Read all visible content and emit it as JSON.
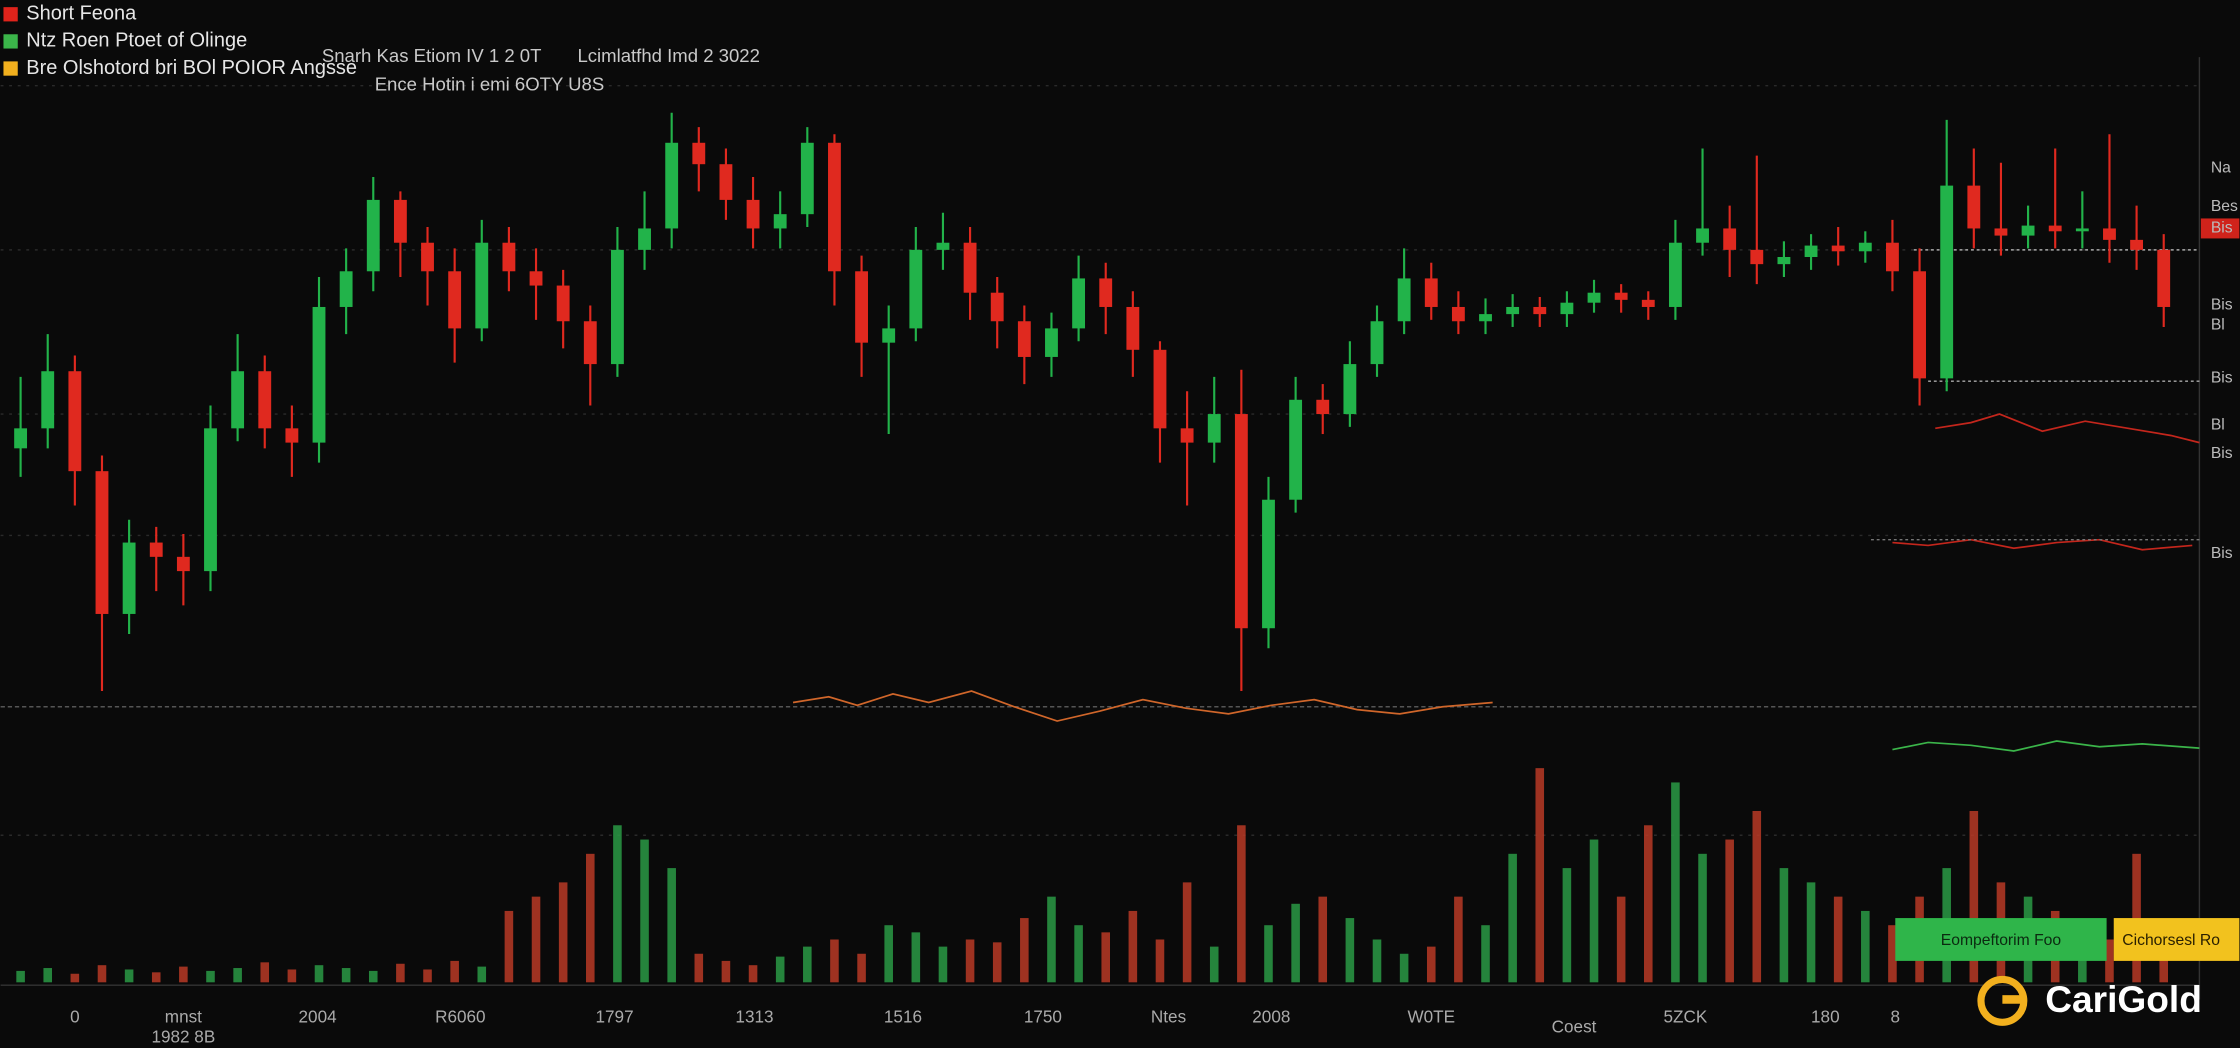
{
  "legend": [
    {
      "label": "Short Feona",
      "color": "#e0231b"
    },
    {
      "label": "Ntz Roen Ptoet of Olinge",
      "color": "#3bb54a"
    },
    {
      "label": "Bre Olshotord bri BOl POIOR Angsse",
      "color": "#f2b01e"
    }
  ],
  "header_notes": [
    "Snarh Kas Etiom IV 1 2 0T",
    "Lcimlatfhd Imd 2 3022",
    "Ence Hotin i emi 6OTY U8S"
  ],
  "candles": {
    "open": [
      420,
      434,
      474,
      404,
      304,
      354,
      344,
      334,
      434,
      474,
      434,
      424,
      519,
      544,
      594,
      564,
      544,
      504,
      564,
      544,
      534,
      509,
      479,
      559,
      574,
      634,
      619,
      594,
      574,
      584,
      634,
      544,
      494,
      504,
      559,
      564,
      529,
      509,
      484,
      504,
      539,
      519,
      489,
      434,
      424,
      444,
      294,
      384,
      454,
      444,
      479,
      509,
      539,
      519,
      509,
      514,
      519,
      514,
      522,
      529,
      524,
      519,
      564,
      574,
      559,
      549,
      554,
      562,
      558,
      564,
      544,
      469,
      604,
      574,
      569,
      576,
      572,
      574,
      566,
      559
    ],
    "close": [
      434,
      474,
      404,
      304,
      354,
      344,
      334,
      434,
      474,
      434,
      424,
      519,
      544,
      594,
      564,
      544,
      504,
      564,
      544,
      534,
      509,
      479,
      559,
      574,
      634,
      619,
      594,
      574,
      584,
      634,
      544,
      494,
      504,
      559,
      564,
      529,
      509,
      484,
      504,
      539,
      519,
      489,
      434,
      424,
      444,
      294,
      384,
      454,
      444,
      479,
      509,
      539,
      519,
      509,
      514,
      519,
      514,
      522,
      529,
      524,
      519,
      564,
      574,
      559,
      549,
      554,
      562,
      558,
      564,
      544,
      469,
      604,
      574,
      569,
      576,
      572,
      574,
      566,
      559,
      519
    ],
    "high": [
      470,
      500,
      485,
      415,
      370,
      365,
      360,
      450,
      500,
      485,
      450,
      540,
      560,
      610,
      600,
      575,
      560,
      580,
      575,
      560,
      545,
      520,
      575,
      600,
      655,
      645,
      630,
      610,
      600,
      645,
      640,
      555,
      520,
      575,
      585,
      575,
      540,
      520,
      515,
      555,
      550,
      530,
      495,
      460,
      470,
      475,
      400,
      470,
      465,
      495,
      520,
      560,
      550,
      530,
      525,
      528,
      526,
      530,
      538,
      535,
      530,
      580,
      630,
      590,
      625,
      565,
      570,
      575,
      572,
      580,
      560,
      650,
      630,
      620,
      590,
      630,
      600,
      640,
      590,
      570
    ],
    "low": [
      400,
      420,
      380,
      250,
      290,
      320,
      310,
      320,
      425,
      420,
      400,
      410,
      500,
      530,
      540,
      520,
      480,
      495,
      530,
      510,
      490,
      450,
      470,
      545,
      560,
      600,
      580,
      560,
      560,
      575,
      520,
      470,
      430,
      495,
      545,
      510,
      490,
      465,
      470,
      495,
      500,
      470,
      410,
      380,
      410,
      250,
      280,
      375,
      430,
      435,
      470,
      500,
      510,
      500,
      500,
      505,
      505,
      505,
      515,
      515,
      510,
      510,
      555,
      540,
      535,
      540,
      545,
      548,
      550,
      530,
      450,
      460,
      560,
      555,
      560,
      560,
      560,
      550,
      545,
      505
    ]
  },
  "volume": [
    8,
    10,
    6,
    12,
    9,
    7,
    11,
    8,
    10,
    14,
    9,
    12,
    10,
    8,
    13,
    9,
    15,
    11,
    50,
    60,
    70,
    90,
    110,
    100,
    80,
    20,
    15,
    12,
    18,
    25,
    30,
    20,
    40,
    35,
    25,
    30,
    28,
    45,
    60,
    40,
    35,
    50,
    30,
    70,
    25,
    110,
    40,
    55,
    60,
    45,
    30,
    20,
    25,
    60,
    40,
    90,
    150,
    80,
    100,
    60,
    110,
    140,
    90,
    100,
    120,
    80,
    70,
    60,
    50,
    40,
    60,
    80,
    120,
    70,
    60,
    50,
    40,
    30,
    90,
    20
  ],
  "x_labels": [
    "0",
    "mnst",
    "1982 8B",
    "2004",
    "R6060",
    "1797",
    "1313",
    "1516",
    "1750",
    "Ntes",
    "2008",
    "W0TE",
    "Coest",
    "5ZCK",
    "180",
    "8"
  ],
  "right_labels": [
    "Na",
    "Bes",
    "Bis",
    "Bis",
    "Bl",
    "Bis",
    "Bl",
    "Bis",
    "Bis"
  ],
  "buttons": [
    "Eompeftorim Foo",
    "Cichorsesl Ro"
  ],
  "brand": "CariGold"
}
